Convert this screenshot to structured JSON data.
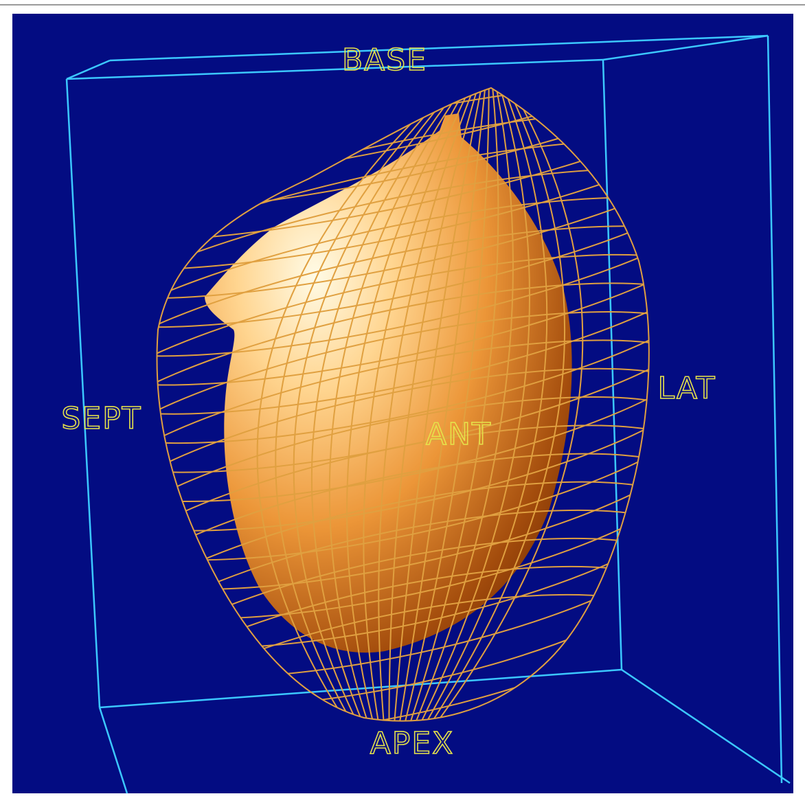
{
  "labels": {
    "base": "BASE",
    "sept": "SEPT",
    "lat": "LAT",
    "ant": "ANT",
    "apex": "APEX"
  }
}
